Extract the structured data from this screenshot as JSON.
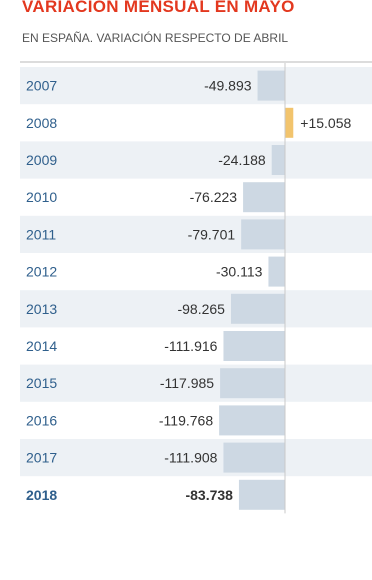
{
  "chart_data": {
    "type": "bar",
    "orientation": "horizontal",
    "title": "VARIACIÓN MENSUAL EN MAYO",
    "subtitle": "EN ESPAÑA. VARIACIÓN RESPECTO DE ABRIL",
    "categories": [
      "2007",
      "2008",
      "2009",
      "2010",
      "2011",
      "2012",
      "2013",
      "2014",
      "2015",
      "2016",
      "2017",
      "2018"
    ],
    "values": [
      -49893,
      15058,
      -24188,
      -76223,
      -79701,
      -30113,
      -98265,
      -111916,
      -117985,
      -119768,
      -111908,
      -83738
    ],
    "value_labels": [
      "-49.893",
      "+15.058",
      "-24.188",
      "-76.223",
      "-79.701",
      "-30.113",
      "-98.265",
      "-111.916",
      "-117.985",
      "-119.768",
      "-111.908",
      "-83.738"
    ],
    "highlight_category": "2018",
    "xlim": [
      -125000,
      20000
    ],
    "colors": {
      "negative": "#cdd8e3",
      "positive": "#f2c46d",
      "title": "#e3381f",
      "year_text": "#2f5f8c",
      "stripe": "#edf1f5",
      "axis": "#c9c9c9"
    }
  }
}
